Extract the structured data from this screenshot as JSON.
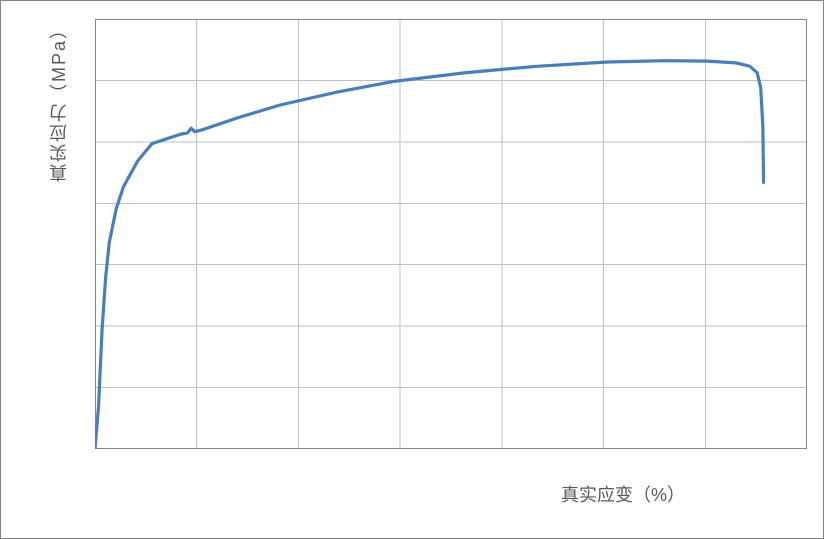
{
  "chart": {
    "type": "line",
    "xlabel": "真实应变（%）",
    "ylabel": "真实应力（MPa）",
    "xlim": [
      0,
      100
    ],
    "ylim": [
      0,
      100
    ],
    "x_axis_position": 100,
    "grid": {
      "color": "#bfbfbf",
      "h_count": 7,
      "v_count": 7
    },
    "border_color": "#868686",
    "outer_border_color": "#828282",
    "line_color": "#4a7ebb",
    "line_width": 3.2,
    "background_color": "#ffffff",
    "label_fontsize": 18,
    "label_color": "#595959",
    "series": [
      {
        "x": 0,
        "y": 0
      },
      {
        "x": 0.5,
        "y": 10
      },
      {
        "x": 1,
        "y": 28
      },
      {
        "x": 1.5,
        "y": 40
      },
      {
        "x": 2,
        "y": 48
      },
      {
        "x": 3,
        "y": 56
      },
      {
        "x": 4,
        "y": 61
      },
      {
        "x": 6,
        "y": 67
      },
      {
        "x": 8,
        "y": 71
      },
      {
        "x": 12,
        "y": 73.2
      },
      {
        "x": 13,
        "y": 73.5
      },
      {
        "x": 13.5,
        "y": 74.6
      },
      {
        "x": 14,
        "y": 73.8
      },
      {
        "x": 15,
        "y": 74.2
      },
      {
        "x": 20,
        "y": 77
      },
      {
        "x": 26,
        "y": 80
      },
      {
        "x": 34,
        "y": 83
      },
      {
        "x": 42,
        "y": 85.5
      },
      {
        "x": 52,
        "y": 87.5
      },
      {
        "x": 62,
        "y": 89
      },
      {
        "x": 72,
        "y": 90
      },
      {
        "x": 80,
        "y": 90.3
      },
      {
        "x": 86,
        "y": 90.2
      },
      {
        "x": 90,
        "y": 89.8
      },
      {
        "x": 92,
        "y": 89
      },
      {
        "x": 93,
        "y": 87.5
      },
      {
        "x": 93.5,
        "y": 84
      },
      {
        "x": 93.8,
        "y": 75
      },
      {
        "x": 93.9,
        "y": 62
      }
    ]
  }
}
